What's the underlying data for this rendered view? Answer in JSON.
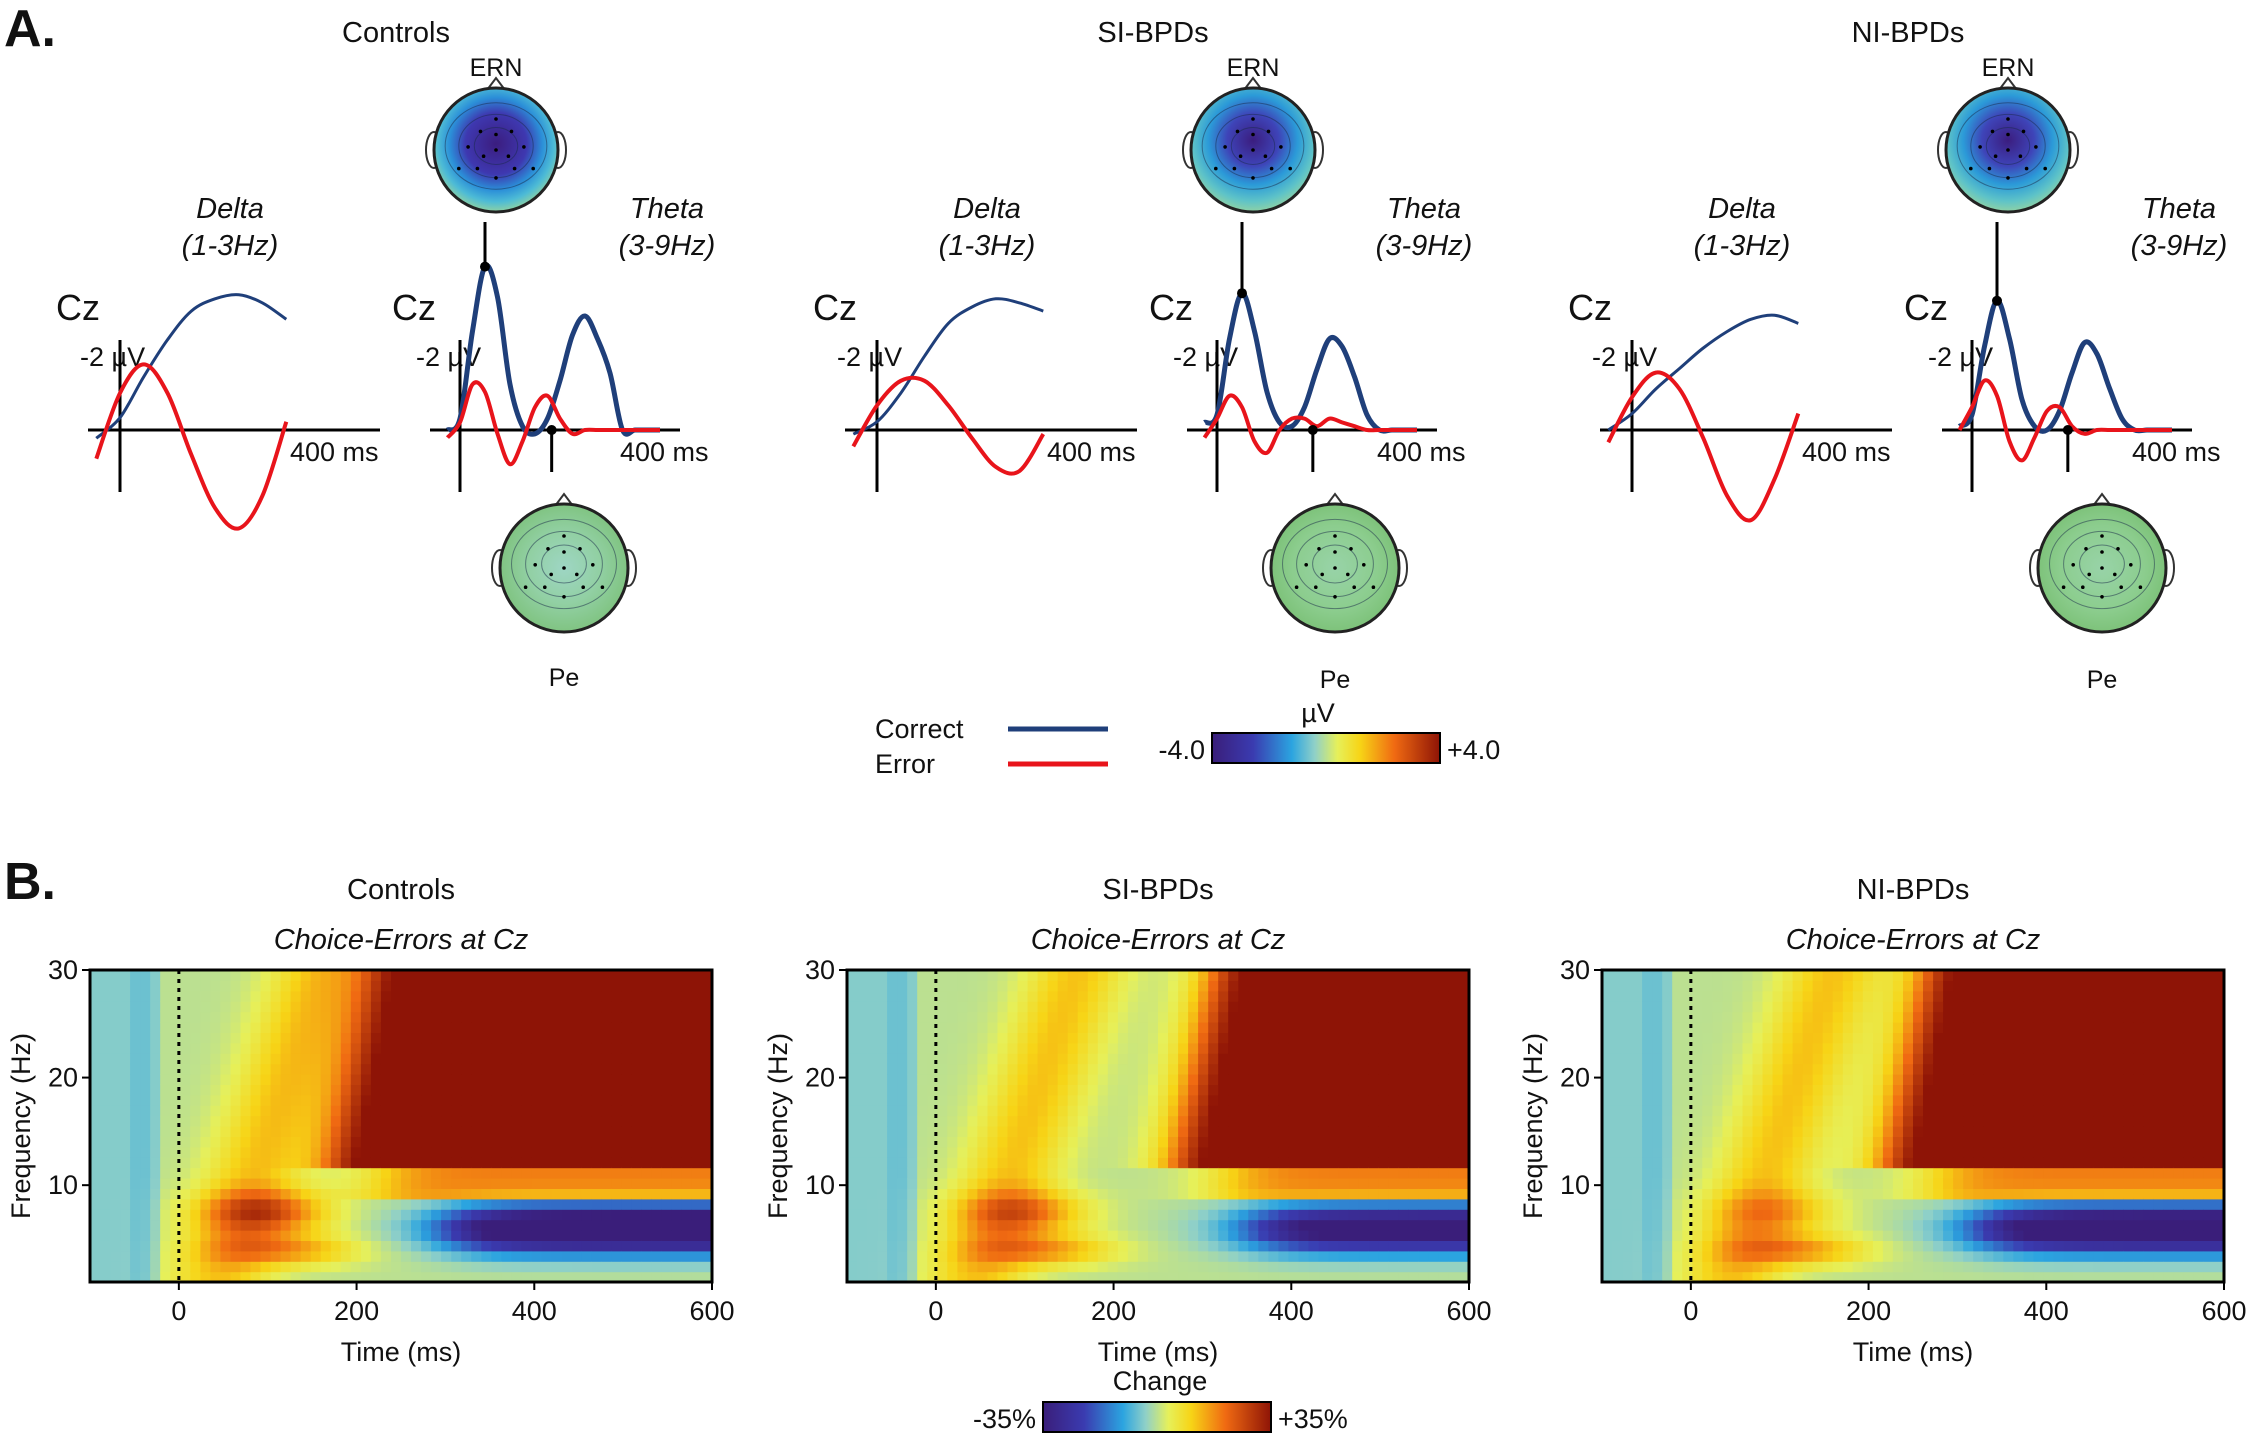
{
  "panel_a": {
    "label": "A.",
    "groups": [
      {
        "title": "Controls",
        "electrode": "Cz",
        "delta_label": "Delta",
        "delta_range": "(1-3Hz)",
        "theta_label": "Theta",
        "theta_range": "(3-9Hz)",
        "scale_label": "-2 µV",
        "time_label": "400 ms",
        "ern_label": "ERN",
        "pe_label": "Pe"
      },
      {
        "title": "SI-BPDs",
        "electrode": "Cz",
        "delta_label": "Delta",
        "delta_range": "(1-3Hz)",
        "theta_label": "Theta",
        "theta_range": "(3-9Hz)",
        "scale_label": "-2 µV",
        "time_label": "400 ms",
        "ern_label": "ERN",
        "pe_label": "Pe"
      },
      {
        "title": "NI-BPDs",
        "electrode": "Cz",
        "delta_label": "Delta",
        "delta_range": "(1-3Hz)",
        "theta_label": "Theta",
        "theta_range": "(3-9Hz)",
        "scale_label": "-2 µV",
        "time_label": "400 ms",
        "ern_label": "ERN",
        "pe_label": "Pe"
      }
    ],
    "legend": {
      "correct": "Correct",
      "error": "Error",
      "correct_color": "#1f3f7a",
      "error_color": "#e8141b"
    },
    "colorbar": {
      "unit": "µV",
      "min": "-4.0",
      "max": "+4.0"
    }
  },
  "panel_b": {
    "label": "B.",
    "colorbar": {
      "title": "Change",
      "min": "-35%",
      "max": "+35%"
    }
  },
  "chart_data": [
    {
      "type": "line",
      "group": "Controls",
      "band": "Delta (1-3Hz)",
      "x_unit": "ms",
      "series": [
        {
          "name": "Correct",
          "x": [
            -50,
            0,
            50,
            100,
            150,
            200,
            250,
            300,
            350
          ],
          "y": [
            -0.2,
            0.3,
            1.3,
            2.2,
            2.9,
            3.2,
            3.3,
            3.1,
            2.7
          ]
        },
        {
          "name": "Error",
          "x": [
            -50,
            0,
            50,
            100,
            150,
            200,
            250,
            300,
            350
          ],
          "y": [
            -0.7,
            0.9,
            1.6,
            0.9,
            -0.6,
            -1.9,
            -2.4,
            -1.6,
            0.2
          ]
        }
      ]
    },
    {
      "type": "line",
      "group": "Controls",
      "band": "Theta (3-9Hz)",
      "x_unit": "ms",
      "series": [
        {
          "name": "Correct",
          "x": [
            -30,
            0,
            30,
            60,
            90,
            120,
            150,
            180,
            210,
            240,
            270,
            300,
            330,
            360,
            390,
            420,
            450,
            480
          ],
          "y": [
            0,
            0.3,
            2.6,
            4.3,
            3.5,
            1.2,
            0.1,
            -0.1,
            0.3,
            1.3,
            2.5,
            3.0,
            2.4,
            1.5,
            0,
            0,
            0,
            0
          ]
        },
        {
          "name": "Error",
          "x": [
            -30,
            0,
            30,
            60,
            90,
            120,
            150,
            180,
            210,
            240,
            270,
            300,
            330,
            360,
            390,
            420,
            450,
            480
          ],
          "y": [
            -0.2,
            0.2,
            1.2,
            1.0,
            -0.1,
            -0.9,
            -0.3,
            0.6,
            0.9,
            0.3,
            -0.1,
            0,
            0,
            0,
            0,
            0,
            0,
            0
          ]
        }
      ]
    },
    {
      "type": "line",
      "group": "SI-BPDs",
      "band": "Delta (1-3Hz)",
      "x_unit": "ms",
      "series": [
        {
          "name": "Correct",
          "x": [
            -50,
            0,
            50,
            100,
            150,
            200,
            250,
            300,
            350
          ],
          "y": [
            -0.1,
            0.2,
            0.9,
            1.8,
            2.6,
            3.0,
            3.2,
            3.1,
            2.9
          ]
        },
        {
          "name": "Error",
          "x": [
            -50,
            0,
            50,
            100,
            150,
            200,
            250,
            300,
            350
          ],
          "y": [
            -0.4,
            0.6,
            1.2,
            1.2,
            0.6,
            -0.2,
            -0.9,
            -1.0,
            -0.1
          ]
        }
      ]
    },
    {
      "type": "line",
      "group": "SI-BPDs",
      "band": "Theta (3-9Hz)",
      "x_unit": "ms",
      "series": [
        {
          "name": "Correct",
          "x": [
            -30,
            0,
            30,
            60,
            90,
            120,
            150,
            180,
            210,
            240,
            270,
            300,
            330,
            360,
            390,
            420,
            450,
            480
          ],
          "y": [
            0.2,
            0.4,
            2.4,
            3.6,
            2.6,
            1.0,
            0.2,
            0.1,
            0.6,
            1.6,
            2.4,
            2.2,
            1.4,
            0.4,
            0,
            0,
            0,
            0
          ]
        },
        {
          "name": "Error",
          "x": [
            -30,
            0,
            30,
            60,
            90,
            120,
            150,
            180,
            210,
            240,
            270,
            300,
            330,
            360,
            390,
            420,
            450,
            480
          ],
          "y": [
            -0.2,
            0.3,
            0.9,
            0.6,
            -0.3,
            -0.6,
            0,
            0.3,
            0.3,
            0.1,
            0.3,
            0.2,
            0.1,
            0,
            0,
            0,
            0,
            0
          ]
        }
      ]
    },
    {
      "type": "line",
      "group": "NI-BPDs",
      "band": "Delta (1-3Hz)",
      "x_unit": "ms",
      "series": [
        {
          "name": "Correct",
          "x": [
            -50,
            0,
            50,
            100,
            150,
            200,
            250,
            300,
            350
          ],
          "y": [
            0,
            0.4,
            1.0,
            1.5,
            2.0,
            2.4,
            2.7,
            2.8,
            2.6
          ]
        },
        {
          "name": "Error",
          "x": [
            -50,
            0,
            50,
            100,
            150,
            200,
            250,
            300,
            350
          ],
          "y": [
            -0.3,
            0.8,
            1.4,
            1.0,
            -0.2,
            -1.6,
            -2.2,
            -1.2,
            0.4
          ]
        }
      ]
    },
    {
      "type": "line",
      "group": "NI-BPDs",
      "band": "Theta (3-9Hz)",
      "x_unit": "ms",
      "series": [
        {
          "name": "Correct",
          "x": [
            -30,
            0,
            30,
            60,
            90,
            120,
            150,
            180,
            210,
            240,
            270,
            300,
            330,
            360,
            390,
            420,
            450,
            480
          ],
          "y": [
            0.1,
            0.4,
            2.2,
            3.4,
            2.4,
            0.8,
            0.1,
            0,
            0.5,
            1.5,
            2.3,
            2.0,
            1.1,
            0.3,
            0,
            0,
            0,
            0
          ]
        },
        {
          "name": "Error",
          "x": [
            -30,
            0,
            30,
            60,
            90,
            120,
            150,
            180,
            210,
            240,
            270,
            300,
            330,
            360,
            390,
            420,
            450,
            480
          ],
          "y": [
            0,
            0.6,
            1.3,
            0.9,
            -0.3,
            -0.8,
            -0.2,
            0.5,
            0.6,
            0.1,
            -0.1,
            0,
            0,
            0,
            0,
            0,
            0,
            0
          ]
        }
      ]
    },
    {
      "type": "heatmap",
      "group": "Controls",
      "title": "Controls",
      "subtitle": "Choice-Errors at Cz",
      "xlabel": "Time (ms)",
      "ylabel": "Frequency (Hz)",
      "xlim": [
        -100,
        600
      ],
      "ylim": [
        1,
        30
      ],
      "xticks": [
        0,
        200,
        400,
        600
      ],
      "yticks": [
        10,
        20,
        30
      ],
      "layers": {
        "beta_start": 190,
        "beta_low_hz": 12,
        "theta_start": 310,
        "theta_depth": 1.0,
        "alpha_band": 1.0
      },
      "color_range": [
        -35,
        35
      ]
    },
    {
      "type": "heatmap",
      "group": "SI-BPDs",
      "title": "SI-BPDs",
      "subtitle": "Choice-Errors at Cz",
      "xlabel": "Time (ms)",
      "ylabel": "Frequency (Hz)",
      "xlim": [
        -100,
        600
      ],
      "ylim": [
        1,
        30
      ],
      "xticks": [
        0,
        200,
        400,
        600
      ],
      "yticks": [
        10,
        20,
        30
      ],
      "layers": {
        "beta_start": 290,
        "beta_low_hz": 12,
        "theta_start": 360,
        "theta_depth": 0.85,
        "alpha_band": 0.8
      },
      "color_range": [
        -35,
        35
      ]
    },
    {
      "type": "heatmap",
      "group": "NI-BPDs",
      "title": "NI-BPDs",
      "subtitle": "Choice-Errors at Cz",
      "xlabel": "Time (ms)",
      "ylabel": "Frequency (Hz)",
      "xlim": [
        -100,
        600
      ],
      "ylim": [
        1,
        30
      ],
      "xticks": [
        0,
        200,
        400,
        600
      ],
      "yticks": [
        10,
        20,
        30
      ],
      "layers": {
        "beta_start": 240,
        "beta_low_hz": 12,
        "theta_start": 330,
        "theta_depth": 0.95,
        "alpha_band": 0.5
      },
      "color_range": [
        -35,
        35
      ]
    }
  ]
}
